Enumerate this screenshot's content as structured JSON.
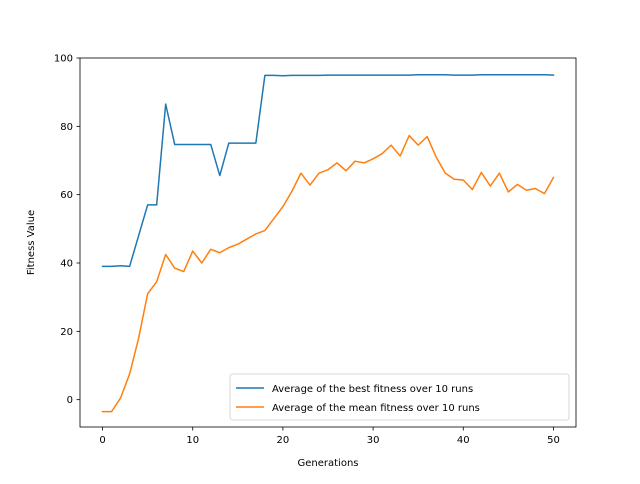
{
  "colors": {
    "series_best": "#1f77b4",
    "series_mean": "#ff7f0e",
    "axes": "#000000",
    "background": "#ffffff"
  },
  "chart_data": {
    "type": "line",
    "title": "",
    "xlabel": "Generations",
    "ylabel": "Fitness Value",
    "xlim": [
      -2.5,
      52.5
    ],
    "ylim": [
      -8,
      100
    ],
    "xticks": [
      0,
      10,
      20,
      30,
      40,
      50
    ],
    "yticks": [
      0,
      20,
      40,
      60,
      80,
      100
    ],
    "grid": false,
    "legend_position": "lower-right",
    "x": [
      0,
      1,
      2,
      3,
      4,
      5,
      6,
      7,
      8,
      9,
      10,
      11,
      12,
      13,
      14,
      15,
      16,
      17,
      18,
      19,
      20,
      21,
      22,
      23,
      24,
      25,
      26,
      27,
      28,
      29,
      30,
      31,
      32,
      33,
      34,
      35,
      36,
      37,
      38,
      39,
      40,
      41,
      42,
      43,
      44,
      45,
      46,
      47,
      48,
      49,
      50
    ],
    "series": [
      {
        "name": "Average of the best fitness over 10 runs",
        "color": "#1f77b4",
        "values": [
          39.0,
          39.0,
          39.2,
          39.0,
          48.0,
          57.0,
          57.0,
          86.5,
          74.7,
          74.7,
          74.7,
          74.7,
          74.7,
          65.6,
          75.1,
          75.1,
          75.1,
          75.1,
          94.9,
          94.9,
          94.8,
          94.9,
          94.9,
          94.9,
          94.9,
          95.0,
          95.0,
          95.0,
          95.0,
          95.0,
          95.0,
          95.0,
          95.0,
          95.0,
          95.0,
          95.1,
          95.1,
          95.1,
          95.1,
          95.0,
          95.0,
          95.0,
          95.1,
          95.1,
          95.1,
          95.1,
          95.1,
          95.1,
          95.1,
          95.1,
          95.0
        ]
      },
      {
        "name": "Average of the mean fitness over 10 runs",
        "color": "#ff7f0e",
        "values": [
          -3.5,
          -3.5,
          0.5,
          7.5,
          18.0,
          31.0,
          34.5,
          42.5,
          38.5,
          37.5,
          43.5,
          40.0,
          44.0,
          43.0,
          44.5,
          45.5,
          47.0,
          48.5,
          49.5,
          53.0,
          56.5,
          61.0,
          66.3,
          62.8,
          66.3,
          67.3,
          69.3,
          67.0,
          69.8,
          69.3,
          70.5,
          72.0,
          74.5,
          71.3,
          77.3,
          74.5,
          77.0,
          71.0,
          66.3,
          64.5,
          64.3,
          61.5,
          66.5,
          62.5,
          66.3,
          60.8,
          63.0,
          61.3,
          61.8,
          60.3,
          65.0
        ]
      }
    ]
  }
}
